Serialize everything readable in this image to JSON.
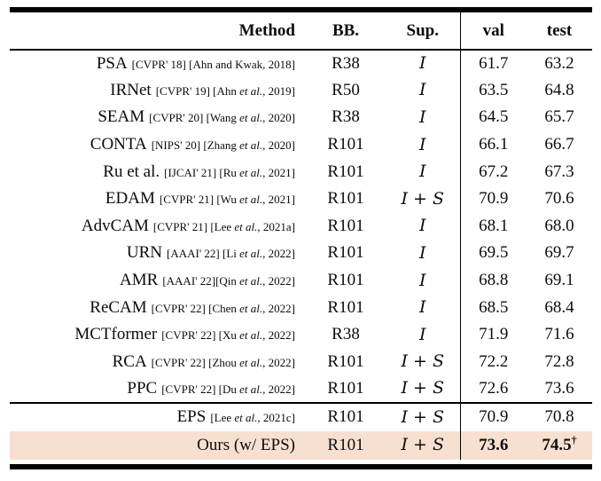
{
  "page": {
    "background": "#ffffff",
    "text_color": "#0c0c0c",
    "highlight_color": "#f8e0d1",
    "rule_color": "#000000"
  },
  "table": {
    "header": {
      "method": "Method",
      "bb": "BB.",
      "sup": "Sup.",
      "val": "val",
      "test": "test"
    },
    "rows": [
      {
        "name": "PSA",
        "citation_parts": [
          {
            "italic": false,
            "text": "[CVPR' 18] [Ahn and Kwak, 2018]"
          }
        ],
        "bb": "R38",
        "sup": "I",
        "val": "61.7",
        "test": "63.2",
        "dagger": "",
        "highlight": false,
        "bold_scores": false
      },
      {
        "name": "IRNet",
        "citation_parts": [
          {
            "italic": false,
            "text": "[CVPR' 19] [Ahn "
          },
          {
            "italic": true,
            "text": "et al."
          },
          {
            "italic": false,
            "text": ", 2019]"
          }
        ],
        "bb": "R50",
        "sup": "I",
        "val": "63.5",
        "test": "64.8",
        "dagger": "",
        "highlight": false,
        "bold_scores": false
      },
      {
        "name": "SEAM",
        "citation_parts": [
          {
            "italic": false,
            "text": "[CVPR' 20] [Wang "
          },
          {
            "italic": true,
            "text": "et al."
          },
          {
            "italic": false,
            "text": ", 2020]"
          }
        ],
        "bb": "R38",
        "sup": "I",
        "val": "64.5",
        "test": "65.7",
        "dagger": "",
        "highlight": false,
        "bold_scores": false
      },
      {
        "name": "CONTA",
        "citation_parts": [
          {
            "italic": false,
            "text": "[NIPS' 20] [Zhang "
          },
          {
            "italic": true,
            "text": "et al."
          },
          {
            "italic": false,
            "text": ", 2020]"
          }
        ],
        "bb": "R101",
        "sup": "I",
        "val": "66.1",
        "test": "66.7",
        "dagger": "",
        "highlight": false,
        "bold_scores": false
      },
      {
        "name": "Ru et al.",
        "citation_parts": [
          {
            "italic": false,
            "text": "[IJCAI' 21] [Ru "
          },
          {
            "italic": true,
            "text": "et al."
          },
          {
            "italic": false,
            "text": ", 2021]"
          }
        ],
        "bb": "R101",
        "sup": "I",
        "val": "67.2",
        "test": "67.3",
        "dagger": "",
        "highlight": false,
        "bold_scores": false
      },
      {
        "name": "EDAM",
        "citation_parts": [
          {
            "italic": false,
            "text": "[CVPR' 21] [Wu "
          },
          {
            "italic": true,
            "text": "et al."
          },
          {
            "italic": false,
            "text": ", 2021]"
          }
        ],
        "bb": "R101",
        "sup": "I + S",
        "val": "70.9",
        "test": "70.6",
        "dagger": "",
        "highlight": false,
        "bold_scores": false
      },
      {
        "name": "AdvCAM",
        "citation_parts": [
          {
            "italic": false,
            "text": "[CVPR' 21] [Lee "
          },
          {
            "italic": true,
            "text": "et al."
          },
          {
            "italic": false,
            "text": ", 2021a]"
          }
        ],
        "bb": "R101",
        "sup": "I",
        "val": "68.1",
        "test": "68.0",
        "dagger": "",
        "highlight": false,
        "bold_scores": false
      },
      {
        "name": "URN",
        "citation_parts": [
          {
            "italic": false,
            "text": "[AAAI' 22] [Li "
          },
          {
            "italic": true,
            "text": "et al."
          },
          {
            "italic": false,
            "text": ", 2022]"
          }
        ],
        "bb": "R101",
        "sup": "I",
        "val": "69.5",
        "test": "69.7",
        "dagger": "",
        "highlight": false,
        "bold_scores": false
      },
      {
        "name": "AMR",
        "citation_parts": [
          {
            "italic": false,
            "text": "[AAAI' 22][Qin "
          },
          {
            "italic": true,
            "text": "et al."
          },
          {
            "italic": false,
            "text": ", 2022]"
          }
        ],
        "bb": "R101",
        "sup": "I",
        "val": "68.8",
        "test": "69.1",
        "dagger": "",
        "highlight": false,
        "bold_scores": false
      },
      {
        "name": "ReCAM",
        "citation_parts": [
          {
            "italic": false,
            "text": "[CVPR' 22] [Chen "
          },
          {
            "italic": true,
            "text": "et al."
          },
          {
            "italic": false,
            "text": ", 2022]"
          }
        ],
        "bb": "R101",
        "sup": "I",
        "val": "68.5",
        "test": "68.4",
        "dagger": "",
        "highlight": false,
        "bold_scores": false
      },
      {
        "name": "MCTformer",
        "citation_parts": [
          {
            "italic": false,
            "text": "[CVPR' 22] [Xu "
          },
          {
            "italic": true,
            "text": "et al."
          },
          {
            "italic": false,
            "text": ", 2022]"
          }
        ],
        "bb": "R38",
        "sup": "I",
        "val": "71.9",
        "test": "71.6",
        "dagger": "",
        "highlight": false,
        "bold_scores": false
      },
      {
        "name": "RCA",
        "citation_parts": [
          {
            "italic": false,
            "text": "[CVPR' 22] [Zhou "
          },
          {
            "italic": true,
            "text": "et al."
          },
          {
            "italic": false,
            "text": ", 2022]"
          }
        ],
        "bb": "R101",
        "sup": "I + S",
        "val": "72.2",
        "test": "72.8",
        "dagger": "",
        "highlight": false,
        "bold_scores": false
      },
      {
        "name": "PPC",
        "citation_parts": [
          {
            "italic": false,
            "text": "[CVPR' 22] [Du "
          },
          {
            "italic": true,
            "text": "et al."
          },
          {
            "italic": false,
            "text": ", 2022]"
          }
        ],
        "bb": "R101",
        "sup": "I + S",
        "val": "72.6",
        "test": "73.6",
        "dagger": "",
        "highlight": false,
        "bold_scores": false
      }
    ],
    "footer_rows": [
      {
        "name": "EPS",
        "citation_parts": [
          {
            "italic": false,
            "text": "[Lee "
          },
          {
            "italic": true,
            "text": "et al."
          },
          {
            "italic": false,
            "text": ", 2021c]"
          }
        ],
        "bb": "R101",
        "sup": "I + S",
        "val": "70.9",
        "test": "70.8",
        "dagger": "",
        "highlight": false,
        "bold_scores": false
      },
      {
        "name": "Ours (w/ EPS)",
        "citation_parts": [],
        "bb": "R101",
        "sup": "I + S",
        "val": "73.6",
        "test": "74.5",
        "dagger": "†",
        "highlight": true,
        "bold_scores": true
      }
    ]
  }
}
